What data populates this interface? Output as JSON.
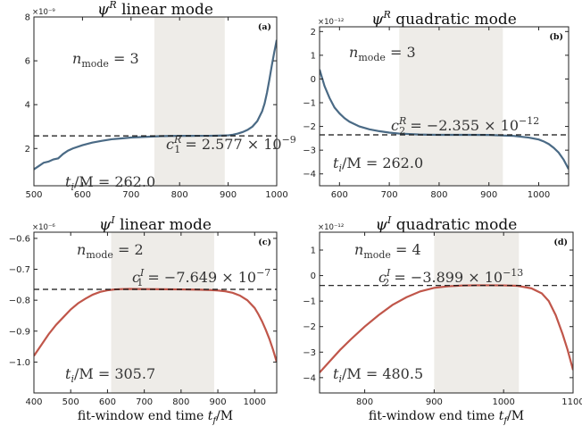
{
  "chart_data": [
    {
      "type": "line",
      "label": "(a)",
      "title": "ψᴿ linear mode",
      "title_text": "linear mode",
      "title_sym": "ψ",
      "title_sup": "R",
      "multiplier": "×10⁻⁹",
      "xlim": [
        500,
        1000
      ],
      "ylim": [
        0.3,
        8.0
      ],
      "xticks": [
        500,
        600,
        700,
        800,
        900,
        1000
      ],
      "yticks": [
        2,
        4,
        6,
        8
      ],
      "shade": [
        748,
        893
      ],
      "hline": 2.577,
      "color": "#4a6a85",
      "nmode_text": "n_mode = 3",
      "ti_text": "t_i/M = 262.0",
      "c_text": "c₁ᴿ = 2.577 × 10⁻⁹",
      "c_sym": "c",
      "c_sup": "R",
      "c_sub": "1",
      "c_val": " = 2.577 × 10",
      "c_exp": "−9",
      "nmode_val": " = 3",
      "ti_val": "/M = 262.0",
      "xlabel": "",
      "x": [
        500,
        510,
        520,
        530,
        540,
        550,
        560,
        570,
        580,
        600,
        620,
        640,
        660,
        680,
        700,
        720,
        740,
        760,
        780,
        800,
        820,
        840,
        860,
        880,
        900,
        910,
        920,
        930,
        940,
        950,
        960,
        970,
        975,
        980,
        985,
        990,
        995,
        1000
      ],
      "y": [
        1.05,
        1.2,
        1.35,
        1.4,
        1.5,
        1.55,
        1.75,
        1.9,
        2.0,
        2.15,
        2.27,
        2.35,
        2.42,
        2.46,
        2.5,
        2.52,
        2.54,
        2.56,
        2.57,
        2.575,
        2.577,
        2.58,
        2.58,
        2.585,
        2.6,
        2.63,
        2.68,
        2.75,
        2.85,
        3.0,
        3.25,
        3.7,
        4.05,
        4.55,
        5.15,
        5.8,
        6.4,
        6.95
      ]
    },
    {
      "type": "line",
      "label": "(b)",
      "title": "ψᴿ quadratic mode",
      "title_text": "quadratic mode",
      "title_sym": "ψ",
      "title_sup": "R",
      "multiplier": "×10⁻¹²",
      "xlim": [
        560,
        1060
      ],
      "ylim": [
        -4.5,
        2.2
      ],
      "xticks": [
        600,
        700,
        800,
        900,
        1000
      ],
      "yticks": [
        -4,
        -3,
        -2,
        -1,
        0,
        1,
        2
      ],
      "shade": [
        720,
        928
      ],
      "hline": -2.355,
      "color": "#4a6a85",
      "nmode_text": "n_mode = 3",
      "ti_text": "t_i/M = 262.0",
      "c_text": "c₂ᴿ = −2.355 × 10⁻¹²",
      "c_sym": "c",
      "c_sup": "R",
      "c_sub": "2",
      "c_val": " = −2.355 × 10",
      "c_exp": "−12",
      "nmode_val": " = 3",
      "ti_val": "/M = 262.0",
      "xlabel": "",
      "x": [
        560,
        570,
        580,
        590,
        600,
        610,
        620,
        640,
        660,
        680,
        700,
        720,
        740,
        760,
        780,
        800,
        850,
        900,
        950,
        980,
        1000,
        1010,
        1020,
        1030,
        1040,
        1050,
        1060
      ],
      "y": [
        0.4,
        -0.3,
        -0.8,
        -1.2,
        -1.45,
        -1.65,
        -1.8,
        -2.0,
        -2.12,
        -2.2,
        -2.26,
        -2.3,
        -2.32,
        -2.34,
        -2.35,
        -2.355,
        -2.355,
        -2.36,
        -2.4,
        -2.47,
        -2.55,
        -2.63,
        -2.74,
        -2.9,
        -3.1,
        -3.4,
        -3.8
      ]
    },
    {
      "type": "line",
      "label": "(c)",
      "title": "ψᴵ linear mode",
      "title_text": "linear mode",
      "title_sym": "ψ",
      "title_sup": "I",
      "multiplier": "×10⁻⁶",
      "xlim": [
        400,
        1060
      ],
      "ylim": [
        -1.1,
        -0.58
      ],
      "xticks": [
        400,
        500,
        600,
        700,
        800,
        900,
        1000
      ],
      "yticks": [
        -1.0,
        -0.9,
        -0.8,
        -0.7,
        -0.6
      ],
      "ytick_labels": [
        "−1.0",
        "−0.9",
        "−0.8",
        "−0.7",
        "−0.6"
      ],
      "shade": [
        610,
        890
      ],
      "hline": -0.7649,
      "color": "#c0564a",
      "nmode_text": "n_mode = 2",
      "ti_text": "t_i/M = 305.7",
      "c_text": "c₁ᴵ = −7.649 × 10⁻⁷",
      "c_sym": "c",
      "c_sup": "I",
      "c_sub": "1",
      "c_val": " = −7.649 × 10",
      "c_exp": "−7",
      "nmode_val": " = 2",
      "ti_val": "/M = 305.7",
      "xlabel": "fit-window end time t_f/M",
      "xlabel_text": "fit-window end time ",
      "xlabel_sym": "t",
      "xlabel_sub": "f",
      "xlabel_tail": "/M",
      "x": [
        400,
        420,
        440,
        460,
        480,
        500,
        520,
        540,
        560,
        580,
        600,
        620,
        640,
        660,
        680,
        700,
        750,
        800,
        850,
        880,
        900,
        920,
        940,
        960,
        980,
        1000,
        1010,
        1020,
        1030,
        1040,
        1050,
        1060
      ],
      "y": [
        -0.98,
        -0.945,
        -0.91,
        -0.88,
        -0.855,
        -0.83,
        -0.81,
        -0.795,
        -0.782,
        -0.773,
        -0.768,
        -0.765,
        -0.764,
        -0.7635,
        -0.7638,
        -0.764,
        -0.7645,
        -0.765,
        -0.766,
        -0.767,
        -0.7685,
        -0.771,
        -0.776,
        -0.785,
        -0.8,
        -0.825,
        -0.845,
        -0.868,
        -0.895,
        -0.925,
        -0.96,
        -1.0
      ]
    },
    {
      "type": "line",
      "label": "(d)",
      "title": "ψᴵ quadratic mode",
      "title_text": "quadratic mode",
      "title_sym": "ψ",
      "title_sup": "I",
      "multiplier": "×10⁻¹²",
      "xlim": [
        735,
        1100
      ],
      "ylim": [
        -4.6,
        1.7
      ],
      "xticks": [
        800,
        900,
        1000,
        1100
      ],
      "yticks": [
        -4,
        -3,
        -2,
        -1,
        0,
        1
      ],
      "shade": [
        900,
        1022
      ],
      "hline": -0.3899,
      "color": "#c0564a",
      "nmode_text": "n_mode = 4",
      "ti_text": "t_i/M = 480.5",
      "c_text": "c₂ᴵ = −3.899 × 10⁻¹³",
      "c_sym": "c",
      "c_sup": "I",
      "c_sub": "2",
      "c_val": " = −3.899 × 10",
      "c_exp": "−13",
      "nmode_val": " = 4",
      "ti_val": "/M = 480.5",
      "xlabel": "fit-window end time t_f/M",
      "xlabel_text": "fit-window end time ",
      "xlabel_sym": "t",
      "xlabel_sub": "f",
      "xlabel_tail": "/M",
      "x": [
        735,
        750,
        765,
        780,
        800,
        820,
        840,
        860,
        880,
        900,
        920,
        940,
        960,
        980,
        1000,
        1020,
        1040,
        1055,
        1065,
        1075,
        1085,
        1092,
        1100
      ],
      "y": [
        -3.8,
        -3.35,
        -2.9,
        -2.5,
        -2.0,
        -1.55,
        -1.15,
        -0.85,
        -0.62,
        -0.48,
        -0.42,
        -0.39,
        -0.38,
        -0.38,
        -0.385,
        -0.4,
        -0.5,
        -0.7,
        -1.0,
        -1.55,
        -2.3,
        -2.9,
        -3.7
      ]
    }
  ]
}
